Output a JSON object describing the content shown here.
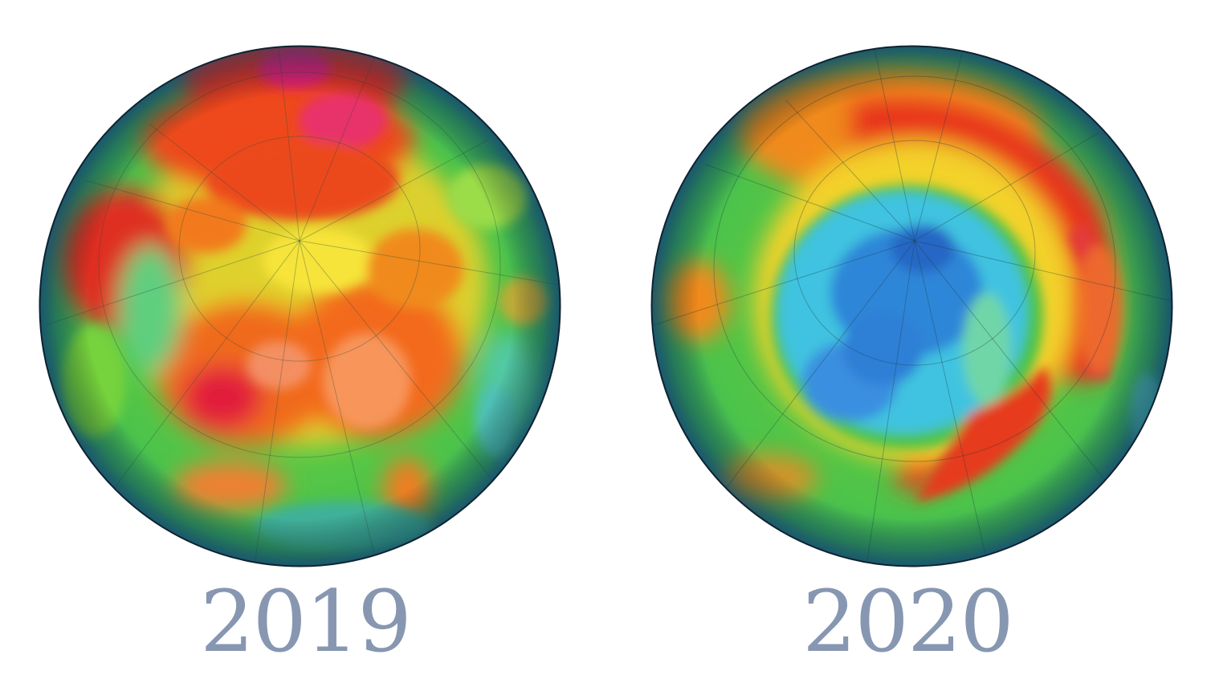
{
  "maps": [
    {
      "year": "2019",
      "ozone_pattern": "high-ozone-no-hole",
      "dominant_colors": [
        "#e8331e",
        "#f08a1e",
        "#f3d22a",
        "#4cc63a"
      ]
    },
    {
      "year": "2020",
      "ozone_pattern": "arctic-ozone-hole",
      "dominant_colors": [
        "#2f7fd6",
        "#3cc1e6",
        "#4cc63a",
        "#e8331e"
      ]
    }
  ],
  "colors": {
    "label": "#8797b1",
    "background": "#ffffff"
  }
}
